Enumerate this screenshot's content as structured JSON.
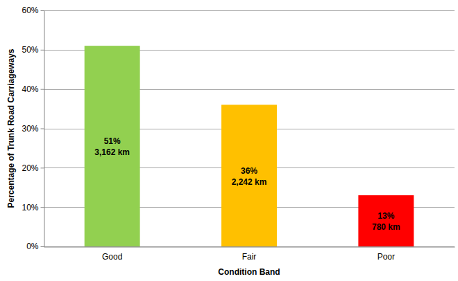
{
  "chart_data": {
    "type": "bar",
    "x_label": "Condition Band",
    "y_label": "Percentage of Trunk Road Carriageways",
    "categories": [
      "Good",
      "Fair",
      "Poor"
    ],
    "values": [
      51,
      36,
      13
    ],
    "value_labels": [
      "51%",
      "36%",
      "13%"
    ],
    "lengths": [
      3162,
      2242,
      780
    ],
    "length_labels": [
      "3,162 km",
      "2,242 km",
      "780 km"
    ],
    "colors": [
      "#92D050",
      "#FFC000",
      "#FF0000"
    ],
    "ylim": [
      0,
      60
    ],
    "yticks": [
      {
        "value": 0,
        "label": "0%"
      },
      {
        "value": 10,
        "label": "10%"
      },
      {
        "value": 20,
        "label": "20%"
      },
      {
        "value": 30,
        "label": "30%"
      },
      {
        "value": 40,
        "label": "40%"
      },
      {
        "value": 50,
        "label": "50%"
      },
      {
        "value": 60,
        "label": "60%"
      }
    ],
    "grid": true,
    "data_labels": true
  }
}
